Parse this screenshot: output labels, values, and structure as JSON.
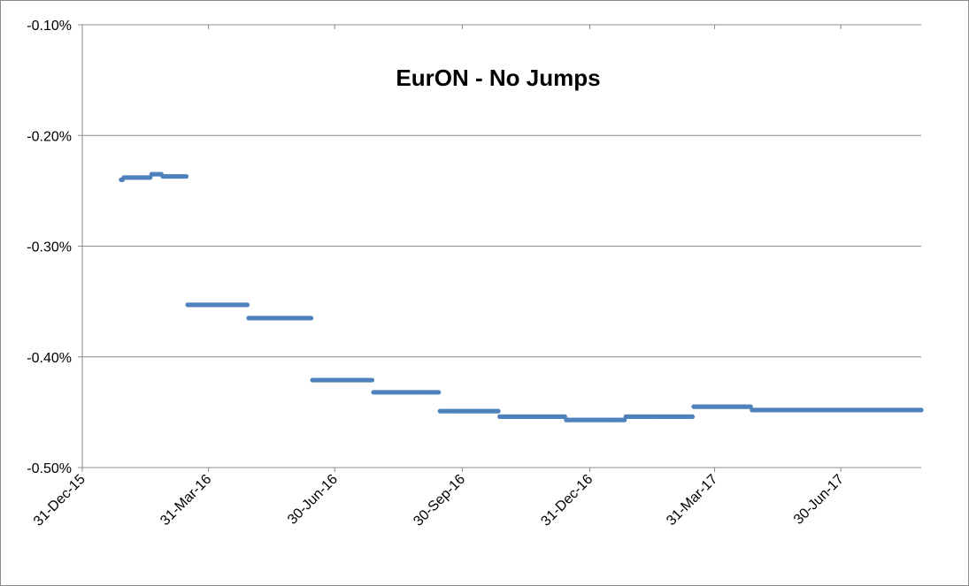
{
  "chart_data": {
    "type": "scatter",
    "title": "EurON - No Jumps",
    "xlabel": "",
    "ylabel": "",
    "y_tick_labels": [
      "-0.10%",
      "-0.20%",
      "-0.30%",
      "-0.40%",
      "-0.50%"
    ],
    "y_ticks": [
      -0.1,
      -0.2,
      -0.3,
      -0.4,
      -0.5
    ],
    "ylim": [
      -0.5,
      -0.1
    ],
    "x_tick_labels": [
      "31-Dec-15",
      "31-Mar-16",
      "30-Jun-16",
      "30-Sep-16",
      "31-Dec-16",
      "31-Mar-17",
      "30-Jun-17"
    ],
    "x_ticks": [
      "2015-12-31",
      "2016-03-31",
      "2016-06-30",
      "2016-09-30",
      "2016-12-31",
      "2017-03-31",
      "2017-06-30"
    ],
    "xlim": [
      "2015-12-31",
      "2017-08-27"
    ],
    "grid": "horizontal",
    "legend": "none",
    "series_color": "#4F81BD",
    "series": [
      {
        "segments": [
          {
            "start": "2016-01-28",
            "end": "2016-01-29",
            "value": -0.24
          },
          {
            "start": "2016-01-30",
            "end": "2016-02-18",
            "value": -0.238
          },
          {
            "start": "2016-02-19",
            "end": "2016-02-26",
            "value": -0.235
          },
          {
            "start": "2016-02-27",
            "end": "2016-03-15",
            "value": -0.237
          },
          {
            "start": "2016-03-16",
            "end": "2016-04-28",
            "value": -0.353
          },
          {
            "start": "2016-04-29",
            "end": "2016-06-13",
            "value": -0.365
          },
          {
            "start": "2016-06-14",
            "end": "2016-07-27",
            "value": -0.421
          },
          {
            "start": "2016-07-28",
            "end": "2016-09-13",
            "value": -0.432
          },
          {
            "start": "2016-09-14",
            "end": "2016-10-26",
            "value": -0.449
          },
          {
            "start": "2016-10-27",
            "end": "2016-12-13",
            "value": -0.454
          },
          {
            "start": "2016-12-14",
            "end": "2017-01-25",
            "value": -0.457
          },
          {
            "start": "2017-01-26",
            "end": "2017-03-15",
            "value": -0.454
          },
          {
            "start": "2017-03-16",
            "end": "2017-04-26",
            "value": -0.445
          },
          {
            "start": "2017-04-27",
            "end": "2017-08-27",
            "value": -0.448
          }
        ]
      }
    ]
  }
}
